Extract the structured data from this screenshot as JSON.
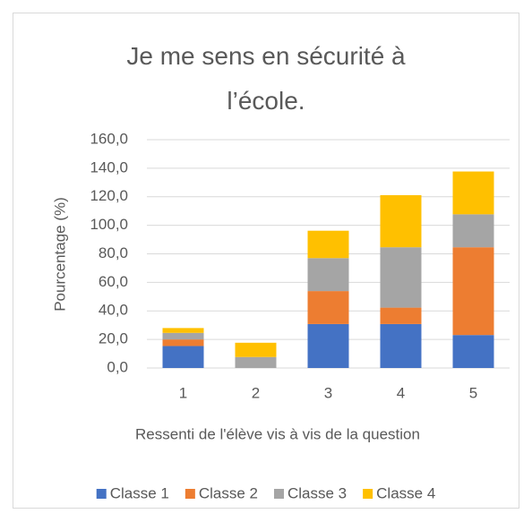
{
  "chart_data": {
    "type": "stacked_bar",
    "title": "Je me sens en sécurité à l’école.",
    "x_label": "Ressenti de l'élève vis à vis de la question",
    "y_label": "Pourcentage (%)",
    "categories": [
      "1",
      "2",
      "3",
      "4",
      "5"
    ],
    "series": [
      {
        "name": "Classe 1",
        "color": "#4472c4",
        "values": [
          15.4,
          0,
          30.8,
          30.8,
          23.1
        ]
      },
      {
        "name": "Classe 2",
        "color": "#ed7d31",
        "values": [
          4.6,
          0,
          23.1,
          11.5,
          61.5
        ]
      },
      {
        "name": "Classe 3",
        "color": "#a5a5a5",
        "values": [
          4.6,
          7.7,
          23.1,
          42.3,
          23.1
        ]
      },
      {
        "name": "Classe 4",
        "color": "#ffc000",
        "values": [
          3.4,
          10.0,
          19.2,
          36.5,
          30.0
        ]
      }
    ],
    "ylim": [
      0,
      160
    ],
    "yticks": [
      {
        "value": 0,
        "label": "0,0"
      },
      {
        "value": 20,
        "label": "20,0"
      },
      {
        "value": 40,
        "label": "40,0"
      },
      {
        "value": 60,
        "label": "60,0"
      },
      {
        "value": 80,
        "label": "80,0"
      },
      {
        "value": 100,
        "label": "100,0"
      },
      {
        "value": 120,
        "label": "120,0"
      },
      {
        "value": 140,
        "label": "140,0"
      },
      {
        "value": 160,
        "label": "160,0"
      }
    ],
    "grid": true,
    "legend": "bottom"
  }
}
